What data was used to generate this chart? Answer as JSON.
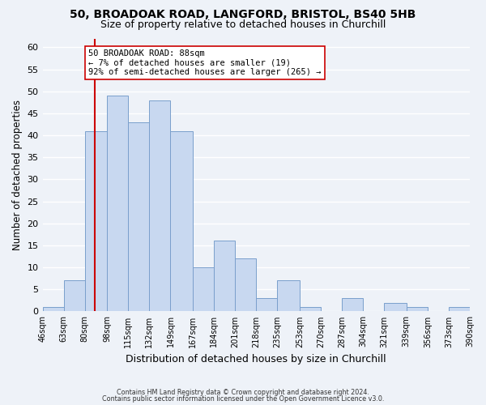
{
  "title": "50, BROADOAK ROAD, LANGFORD, BRISTOL, BS40 5HB",
  "subtitle": "Size of property relative to detached houses in Churchill",
  "xlabel": "Distribution of detached houses by size in Churchill",
  "ylabel": "Number of detached properties",
  "bar_color": "#c8d8f0",
  "bar_edge_color": "#7a9fcc",
  "bg_color": "#eef2f8",
  "grid_color": "#ffffff",
  "bins": [
    46,
    63,
    80,
    98,
    115,
    132,
    149,
    167,
    184,
    201,
    218,
    235,
    253,
    270,
    287,
    304,
    321,
    339,
    356,
    373,
    390
  ],
  "bin_labels": [
    "46sqm",
    "63sqm",
    "80sqm",
    "98sqm",
    "115sqm",
    "132sqm",
    "149sqm",
    "167sqm",
    "184sqm",
    "201sqm",
    "218sqm",
    "235sqm",
    "253sqm",
    "270sqm",
    "287sqm",
    "304sqm",
    "321sqm",
    "339sqm",
    "356sqm",
    "373sqm",
    "390sqm"
  ],
  "counts": [
    1,
    7,
    41,
    49,
    43,
    48,
    41,
    10,
    16,
    12,
    3,
    7,
    1,
    0,
    3,
    0,
    2,
    1,
    0,
    1
  ],
  "ylim": [
    0,
    62
  ],
  "yticks": [
    0,
    5,
    10,
    15,
    20,
    25,
    30,
    35,
    40,
    45,
    50,
    55,
    60
  ],
  "property_value": 88,
  "vline_color": "#cc0000",
  "annotation_box_color": "#ffffff",
  "annotation_border_color": "#cc0000",
  "annotation_text_line1": "50 BROADOAK ROAD: 88sqm",
  "annotation_text_line2": "← 7% of detached houses are smaller (19)",
  "annotation_text_line3": "92% of semi-detached houses are larger (265) →",
  "footer_line1": "Contains HM Land Registry data © Crown copyright and database right 2024.",
  "footer_line2": "Contains public sector information licensed under the Open Government Licence v3.0."
}
